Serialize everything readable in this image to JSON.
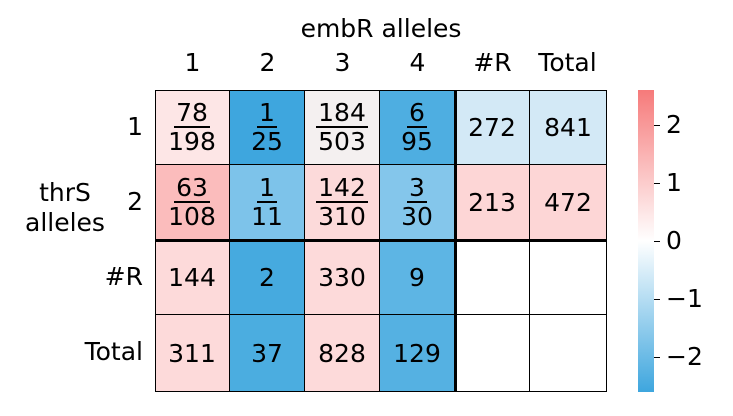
{
  "chart_data": {
    "type": "heatmap",
    "col_title": "embR alleles",
    "row_title": "thrS\nalleles",
    "col_labels": [
      "1",
      "2",
      "3",
      "4",
      "#R",
      "Total"
    ],
    "row_labels": [
      "1",
      "2",
      "#R",
      "Total"
    ],
    "cells": [
      [
        {
          "num": "78",
          "den": "198",
          "color": "#fde6e6"
        },
        {
          "num": "1",
          "den": "25",
          "color": "#3ea6de"
        },
        {
          "num": "184",
          "den": "503",
          "color": "#f4f0f0"
        },
        {
          "num": "6",
          "den": "95",
          "color": "#4eaee1"
        },
        {
          "text": "272",
          "color": "#d3e9f6"
        },
        {
          "text": "841",
          "color": "#d3e9f6"
        }
      ],
      [
        {
          "num": "63",
          "den": "108",
          "color": "#fbbcbc"
        },
        {
          "num": "1",
          "den": "11",
          "color": "#7dc3ea"
        },
        {
          "num": "142",
          "den": "310",
          "color": "#fcdada"
        },
        {
          "num": "3",
          "den": "30",
          "color": "#84c6eb"
        },
        {
          "text": "213",
          "color": "#fdd6d6"
        },
        {
          "text": "472",
          "color": "#fdd6d6"
        }
      ],
      [
        {
          "text": "144",
          "color": "#fddada"
        },
        {
          "text": "2",
          "color": "#46aadf"
        },
        {
          "text": "330",
          "color": "#fddada"
        },
        {
          "text": "9",
          "color": "#5db5e4"
        },
        {
          "text": "",
          "color": "#ffffff"
        },
        {
          "text": "",
          "color": "#ffffff"
        }
      ],
      [
        {
          "text": "311",
          "color": "#fddada"
        },
        {
          "text": "37",
          "color": "#4badE0"
        },
        {
          "text": "828",
          "color": "#fddada"
        },
        {
          "text": "129",
          "color": "#55b1e2"
        },
        {
          "text": "",
          "color": "#ffffff"
        },
        {
          "text": "",
          "color": "#ffffff"
        }
      ]
    ],
    "colorbar": {
      "range": [
        -2.6,
        2.6
      ],
      "ticks": [
        2,
        1,
        0,
        -1,
        -2
      ],
      "tick_labels": [
        "2",
        "1",
        "0",
        "−1",
        "−2"
      ],
      "color_low": "#3ea6de",
      "color_mid": "#ffffff",
      "color_high": "#f67a7a"
    }
  }
}
